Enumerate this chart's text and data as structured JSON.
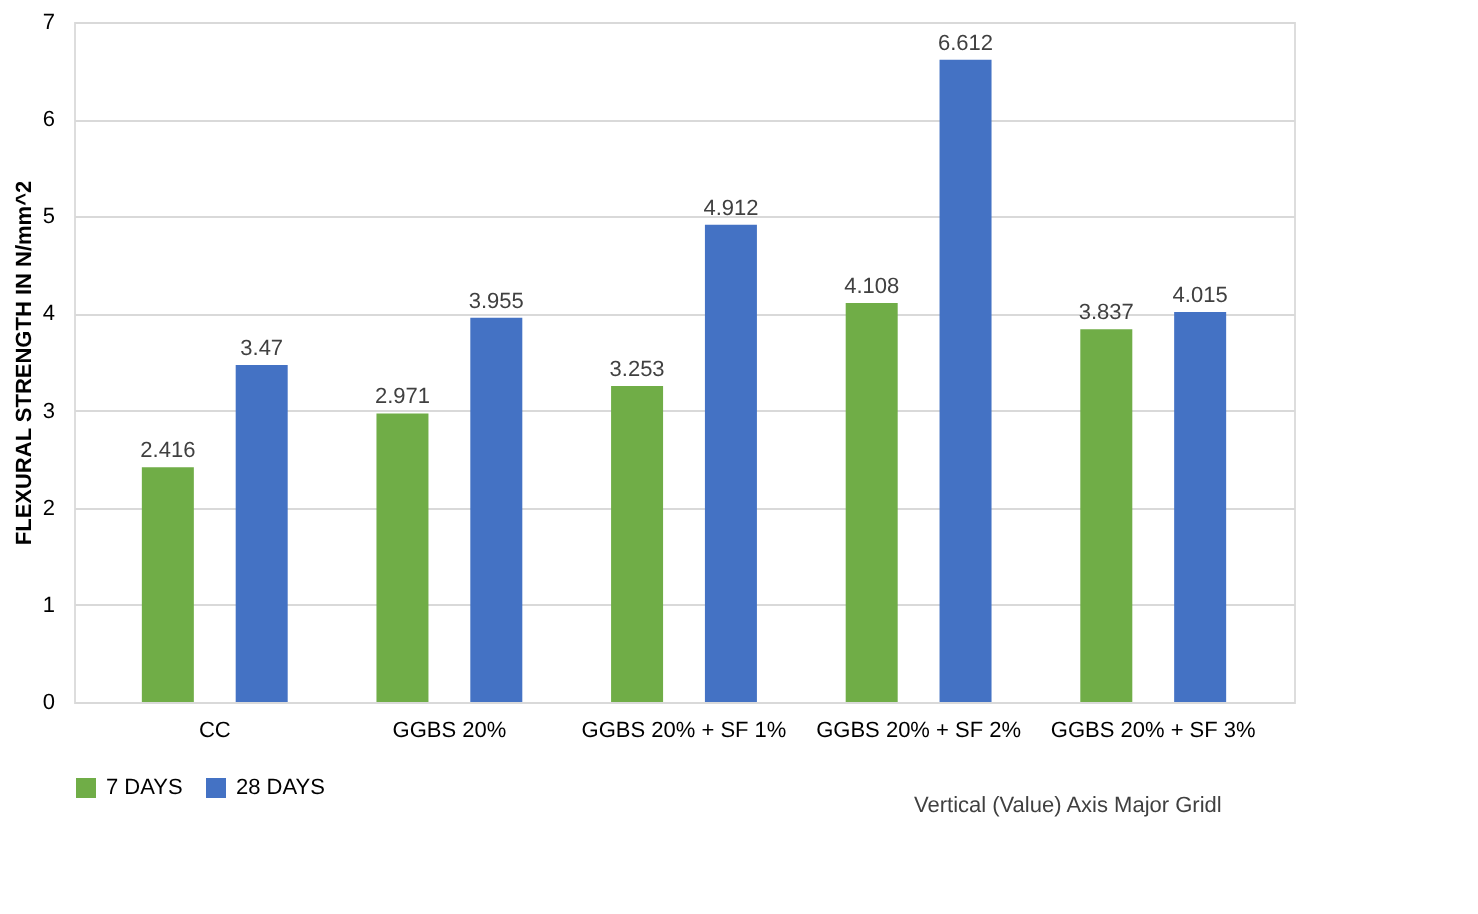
{
  "chart_data": {
    "type": "bar",
    "ylabel": "FLEXURAL STRENGTH IN N/mm^2",
    "categories": [
      "CC",
      "GGBS 20%",
      "GGBS 20% + SF 1%",
      "GGBS 20% + SF 2%",
      "GGBS 20% + SF 3%"
    ],
    "series": [
      {
        "name": "7 DAYS",
        "color": "#70ad47",
        "values": [
          2.416,
          2.971,
          3.253,
          4.108,
          3.837
        ]
      },
      {
        "name": "28 DAYS",
        "color": "#4472c4",
        "values": [
          3.47,
          3.955,
          4.912,
          6.612,
          4.015
        ]
      }
    ],
    "ylim": [
      0,
      7
    ],
    "yticks": [
      0,
      1,
      2,
      3,
      4,
      5,
      6,
      7
    ],
    "grid": "y",
    "legend": "bottom",
    "data_labels": true,
    "annotations": [
      "Vertical (Value) Axis Major Gridl"
    ]
  }
}
